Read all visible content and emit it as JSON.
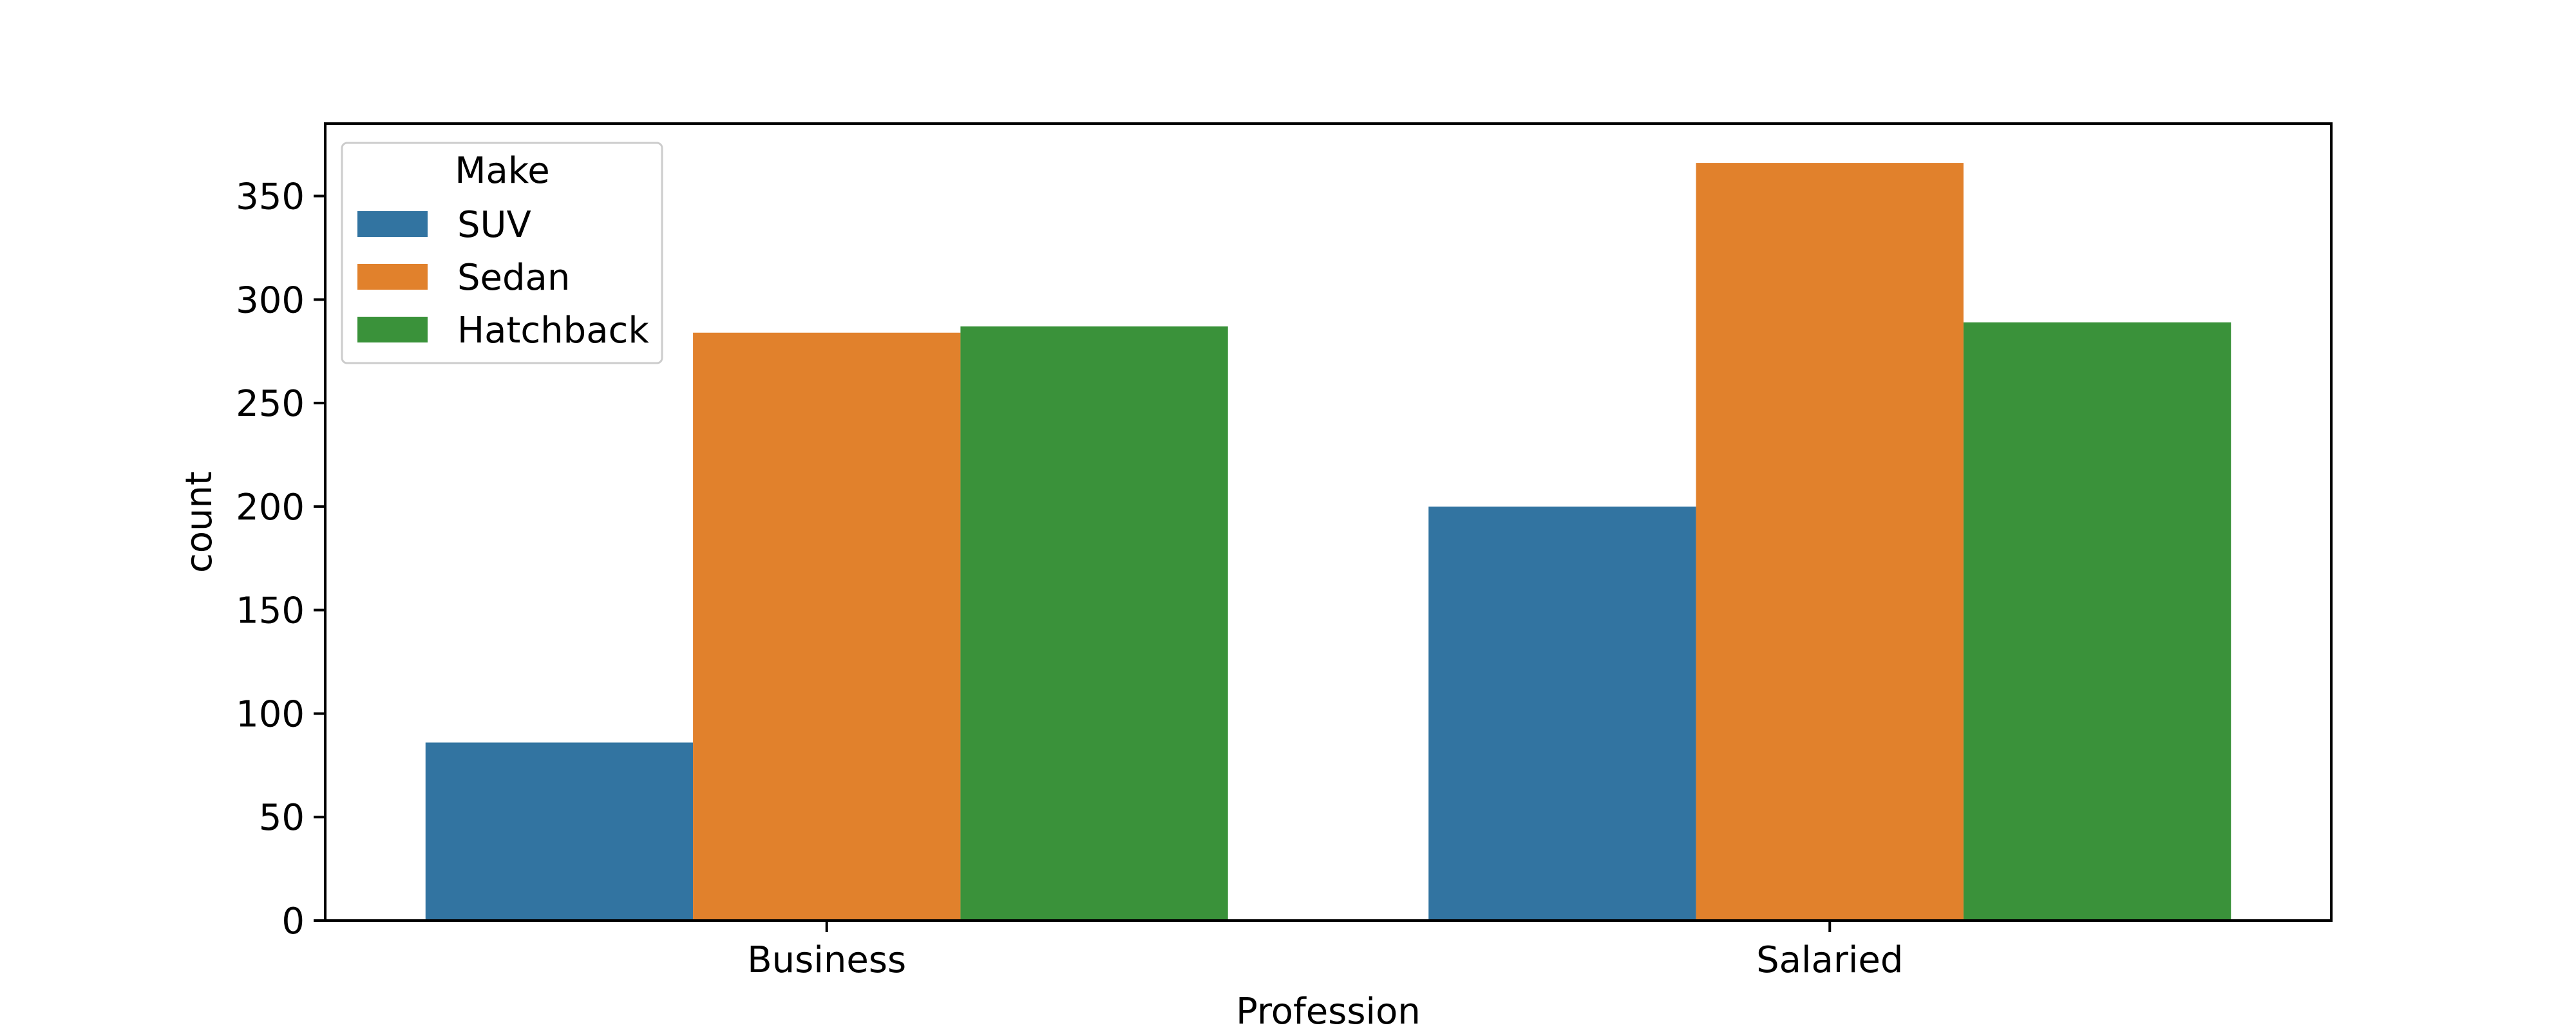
{
  "chart_data": {
    "type": "bar",
    "title": "",
    "xlabel": "Profession",
    "ylabel": "count",
    "categories": [
      "Business",
      "Salaried"
    ],
    "ylim": [
      0,
      385
    ],
    "yticks": [
      0,
      50,
      100,
      150,
      200,
      250,
      300,
      350
    ],
    "grid": false,
    "legend": {
      "title": "Make",
      "placement": "top-left"
    },
    "series": [
      {
        "name": "SUV",
        "color": "#3274a1",
        "values": [
          86,
          200
        ]
      },
      {
        "name": "Sedan",
        "color": "#e1812c",
        "values": [
          284,
          366
        ]
      },
      {
        "name": "Hatchback",
        "color": "#3a923a",
        "values": [
          287,
          289
        ]
      }
    ]
  }
}
